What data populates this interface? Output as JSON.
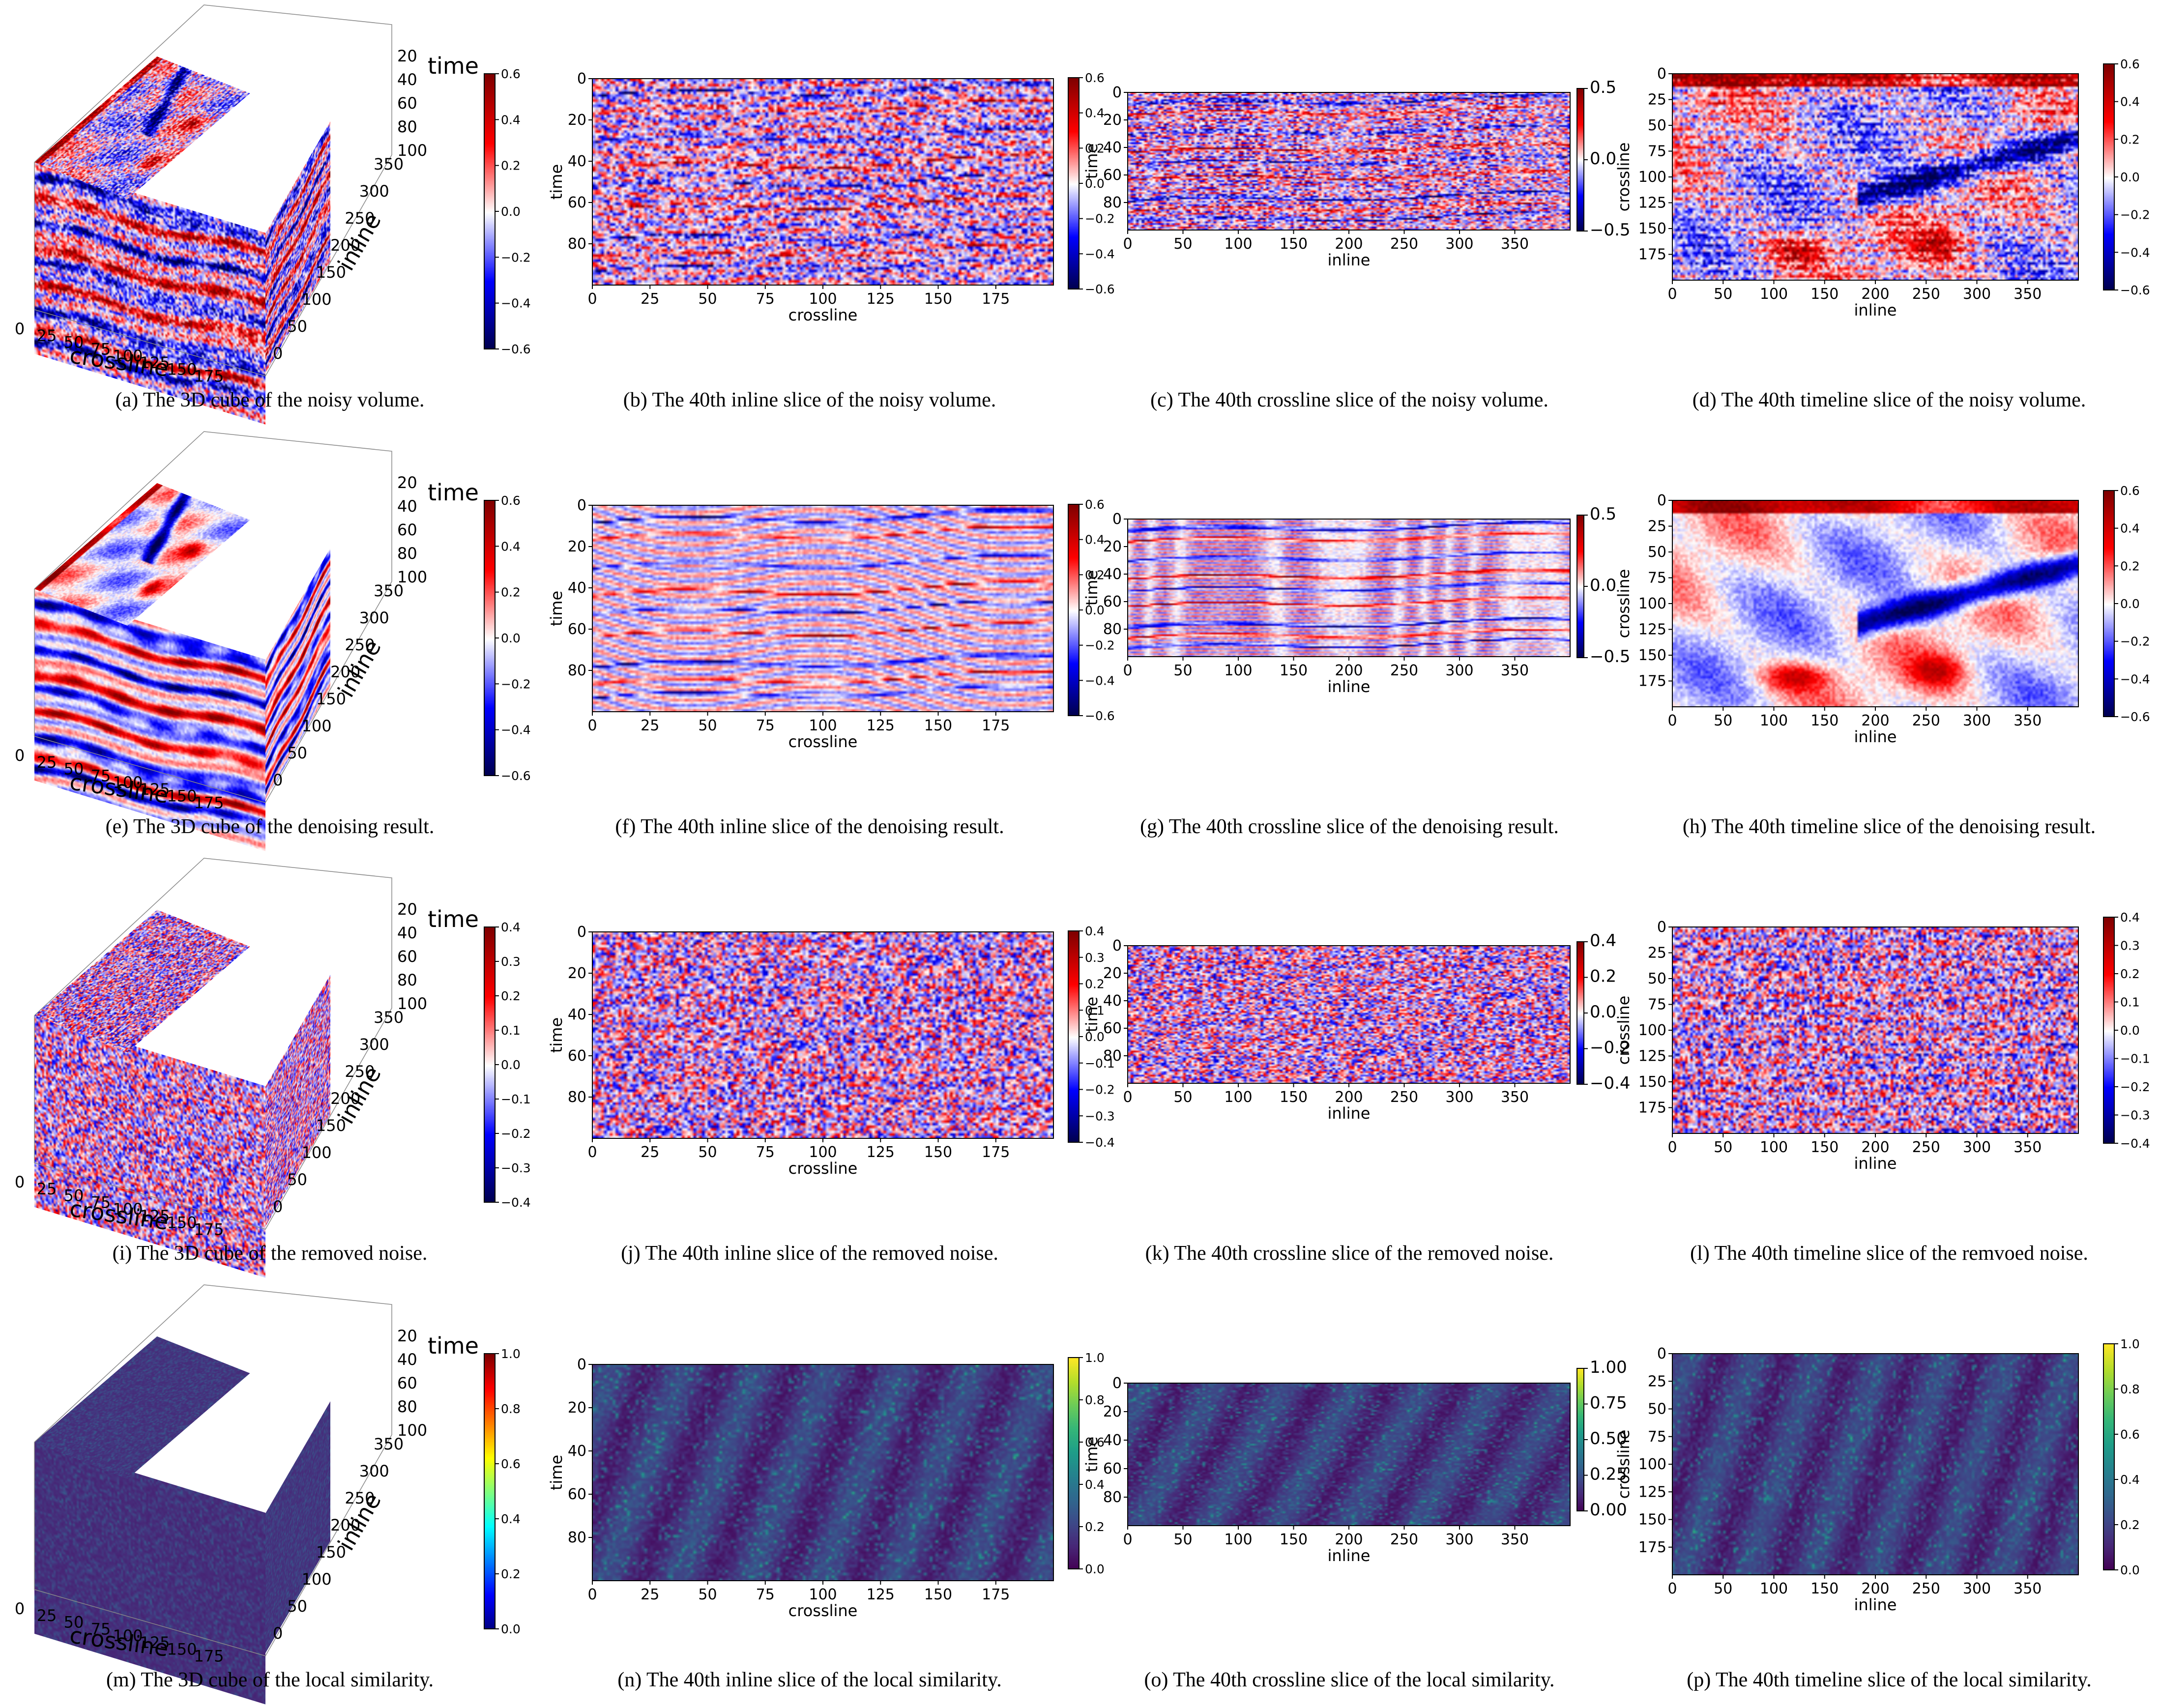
{
  "figure": {
    "rows": [
      {
        "id": "noisy",
        "colormap": "seismic",
        "colorbar_ticks": [
          "0.6",
          "0.4",
          "0.2",
          "0.0",
          "−0.2",
          "−0.4",
          "−0.6"
        ],
        "colorbar_ticks_c": [
          "0.5",
          "0.0",
          "−0.5"
        ],
        "captions": [
          "(a) The 3D cube of the noisy volume.",
          "(b) The 40th inline slice of the noisy volume.",
          "(c) The 40th crossline slice of the noisy volume.",
          "(d) The 40th timeline slice of the noisy volume."
        ]
      },
      {
        "id": "denoised",
        "colormap": "seismic",
        "colorbar_ticks": [
          "0.6",
          "0.4",
          "0.2",
          "0.0",
          "−0.2",
          "−0.4",
          "−0.6"
        ],
        "colorbar_ticks_c": [
          "0.5",
          "0.0",
          "−0.5"
        ],
        "captions": [
          "(e) The 3D cube of the denoising result.",
          "(f) The 40th inline slice of the denoising result.",
          "(g) The 40th crossline slice of the denoising result.",
          "(h) The 40th timeline slice of the denoising result."
        ]
      },
      {
        "id": "noise",
        "colormap": "seismic",
        "colorbar_ticks": [
          "0.4",
          "0.3",
          "0.2",
          "0.1",
          "0.0",
          "−0.1",
          "−0.2",
          "−0.3",
          "−0.4"
        ],
        "colorbar_ticks_c": [
          "0.4",
          "0.2",
          "0.0",
          "−0.2",
          "−0.4"
        ],
        "captions": [
          "(i) The 3D cube of the removed noise.",
          "(j) The 40th inline slice of the removed noise.",
          "(k) The 40th crossline slice of the removed noise.",
          "(l) The 40th timeline slice of the remvoed noise."
        ]
      },
      {
        "id": "similarity",
        "colormap": "viridis",
        "colorbar_ticks": [
          "1.0",
          "0.8",
          "0.6",
          "0.4",
          "0.2",
          "0.0"
        ],
        "colorbar_ticks_cube": [
          "1.0",
          "0.8",
          "0.6",
          "0.4",
          "0.2",
          "0.0"
        ],
        "colorbar_ticks_c": [
          "1.00",
          "0.75",
          "0.50",
          "0.25",
          "0.00"
        ],
        "captions": [
          "(m) The 3D cube of the local similarity.",
          "(n) The 40th inline slice of the local similarity.",
          "(o) The 40th crossline slice of the local similarity.",
          "(p) The 40th timeline slice of the local similarity."
        ]
      }
    ],
    "axes": {
      "inline_slice": {
        "xlabel": "crossline",
        "ylabel": "time",
        "xticks": [
          "0",
          "25",
          "50",
          "75",
          "100",
          "125",
          "150",
          "175"
        ],
        "yticks": [
          "0",
          "20",
          "40",
          "60",
          "80"
        ]
      },
      "crossline_slice": {
        "xlabel": "inline",
        "ylabel": "time",
        "xticks": [
          "0",
          "50",
          "100",
          "150",
          "200",
          "250",
          "300",
          "350"
        ],
        "yticks": [
          "0",
          "20",
          "40",
          "60",
          "80"
        ]
      },
      "timeline_slice": {
        "xlabel": "inline",
        "ylabel": "crossline",
        "xticks": [
          "0",
          "50",
          "100",
          "150",
          "200",
          "250",
          "300",
          "350"
        ],
        "yticks": [
          "0",
          "25",
          "50",
          "75",
          "100",
          "125",
          "150",
          "175"
        ]
      },
      "cube": {
        "xlabel": "crossline",
        "ylabel": "inline",
        "zlabel": "time",
        "xticks": [
          "0",
          "25",
          "50",
          "75",
          "100",
          "125",
          "150",
          "175"
        ],
        "yticks": [
          "0",
          "50",
          "100",
          "150",
          "200",
          "250",
          "300",
          "350"
        ],
        "zticks": [
          "20",
          "40",
          "60",
          "80",
          "100"
        ]
      }
    },
    "colors": {
      "seismic_low": "#00004c",
      "seismic_mid": "#ffffff",
      "seismic_high": "#800000",
      "viridis_low": "#440154",
      "viridis_high": "#fde725"
    }
  }
}
